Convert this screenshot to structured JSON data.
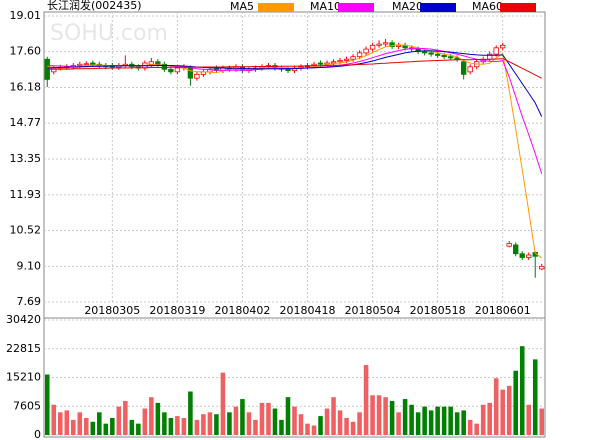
{
  "chart_data": {
    "type": "candlestick",
    "title": "长江润发(002435)",
    "watermark": "SOHU.com",
    "up_color": "#ff0000",
    "down_color": "#008000",
    "grid": true,
    "categories": [
      null,
      null,
      null,
      null,
      null,
      null,
      null,
      null,
      null,
      null,
      "20180305",
      null,
      null,
      null,
      null,
      null,
      null,
      null,
      null,
      null,
      "20180319",
      null,
      null,
      null,
      null,
      null,
      null,
      null,
      null,
      null,
      "20180402",
      null,
      null,
      null,
      null,
      null,
      null,
      null,
      null,
      null,
      "20180418",
      null,
      null,
      null,
      null,
      null,
      null,
      null,
      null,
      null,
      "20180504",
      null,
      null,
      null,
      null,
      null,
      null,
      null,
      null,
      null,
      "20180518",
      null,
      null,
      null,
      null,
      null,
      null,
      null,
      null,
      null,
      "20180601",
      null,
      null,
      null,
      null,
      null,
      null
    ],
    "open": [
      17.3,
      16.8,
      16.95,
      16.98,
      17.0,
      17.05,
      17.1,
      17.15,
      17.1,
      17.05,
      17.05,
      16.98,
      17.05,
      17.1,
      17.0,
      16.95,
      17.1,
      17.2,
      17.1,
      16.9,
      16.8,
      16.95,
      16.95,
      16.55,
      16.7,
      16.8,
      16.95,
      16.85,
      16.95,
      16.9,
      17.0,
      16.85,
      16.9,
      16.95,
      17.0,
      17.05,
      16.95,
      16.9,
      16.85,
      16.95,
      17.0,
      17.05,
      17.15,
      17.1,
      17.15,
      17.2,
      17.25,
      17.3,
      17.4,
      17.55,
      17.7,
      17.85,
      17.9,
      17.95,
      17.8,
      17.85,
      17.75,
      17.7,
      17.6,
      17.55,
      17.5,
      17.45,
      17.4,
      17.35,
      17.2,
      16.8,
      17.0,
      17.2,
      17.3,
      17.5,
      17.75,
      9.9,
      9.95,
      9.6,
      9.45,
      9.65,
      9.0
    ],
    "high": [
      17.4,
      17.05,
      17.08,
      17.1,
      17.15,
      17.2,
      17.22,
      17.25,
      17.2,
      17.15,
      17.15,
      17.15,
      17.45,
      17.2,
      17.1,
      17.25,
      17.35,
      17.3,
      17.2,
      17.0,
      17.05,
      17.1,
      17.05,
      16.8,
      16.9,
      17.0,
      17.05,
      17.05,
      17.05,
      17.1,
      17.1,
      17.0,
      17.05,
      17.1,
      17.15,
      17.15,
      17.05,
      17.0,
      17.05,
      17.1,
      17.15,
      17.2,
      17.25,
      17.25,
      17.3,
      17.35,
      17.4,
      17.5,
      17.65,
      17.8,
      17.95,
      18.05,
      18.1,
      18.05,
      17.95,
      17.95,
      17.85,
      17.8,
      17.7,
      17.65,
      17.6,
      17.55,
      17.5,
      17.45,
      17.3,
      17.1,
      17.3,
      17.4,
      17.6,
      17.85,
      17.95,
      10.1,
      10.05,
      9.7,
      9.65,
      9.7,
      9.2
    ],
    "low": [
      16.2,
      16.7,
      16.85,
      16.88,
      16.9,
      16.95,
      17.0,
      16.98,
      16.92,
      16.9,
      16.88,
      16.88,
      16.95,
      16.9,
      16.85,
      16.85,
      17.0,
      17.0,
      16.8,
      16.7,
      16.7,
      16.85,
      16.25,
      16.45,
      16.6,
      16.7,
      16.75,
      16.75,
      16.8,
      16.8,
      16.75,
      16.75,
      16.8,
      16.85,
      16.9,
      16.85,
      16.8,
      16.75,
      16.75,
      16.85,
      16.9,
      16.95,
      17.0,
      17.0,
      17.05,
      17.1,
      17.15,
      17.2,
      17.3,
      17.45,
      17.6,
      17.75,
      17.8,
      17.7,
      17.7,
      17.65,
      17.6,
      17.5,
      17.45,
      17.4,
      17.35,
      17.3,
      17.25,
      17.2,
      16.5,
      16.7,
      16.9,
      17.1,
      17.2,
      17.4,
      17.65,
      9.85,
      9.5,
      9.35,
      9.35,
      8.65,
      8.95
    ],
    "close": [
      16.5,
      16.95,
      16.98,
      17.0,
      17.05,
      17.1,
      17.12,
      17.08,
      17.02,
      17.0,
      16.98,
      17.05,
      17.1,
      17.0,
      16.95,
      17.15,
      17.2,
      17.1,
      16.9,
      16.8,
      16.95,
      17.0,
      16.55,
      16.7,
      16.8,
      16.9,
      16.85,
      16.95,
      16.9,
      17.0,
      16.85,
      16.9,
      16.95,
      17.0,
      17.05,
      16.95,
      16.9,
      16.85,
      16.95,
      17.0,
      17.05,
      17.1,
      17.1,
      17.15,
      17.2,
      17.25,
      17.3,
      17.4,
      17.55,
      17.7,
      17.85,
      17.9,
      17.95,
      17.8,
      17.85,
      17.75,
      17.7,
      17.6,
      17.55,
      17.5,
      17.45,
      17.4,
      17.35,
      17.3,
      16.7,
      17.0,
      17.2,
      17.3,
      17.5,
      17.75,
      17.85,
      10.0,
      9.6,
      9.45,
      9.55,
      9.5,
      9.1
    ],
    "ylim": [
      7.69,
      19.01
    ],
    "yticks": [
      7.69,
      {
        "value": 9.1,
        "label": "9.10"
      },
      10.52,
      11.93,
      13.35,
      14.77,
      16.18,
      {
        "value": 17.6,
        "label": "17.60"
      },
      19.01
    ],
    "series": [
      {
        "name": "MA5",
        "color": "#ff9900",
        "values": [
          17.0,
          16.98,
          16.96,
          16.9,
          16.9,
          17.02,
          17.05,
          17.07,
          17.07,
          17.06,
          17.04,
          17.03,
          17.03,
          17.03,
          17.02,
          17.05,
          17.08,
          17.08,
          17.06,
          17.03,
          16.99,
          16.95,
          16.84,
          16.8,
          16.8,
          16.79,
          16.76,
          16.84,
          16.88,
          16.92,
          16.91,
          16.91,
          16.92,
          16.94,
          16.95,
          16.95,
          16.97,
          16.95,
          16.94,
          16.94,
          16.96,
          16.99,
          17.04,
          17.08,
          17.12,
          17.16,
          17.2,
          17.26,
          17.34,
          17.44,
          17.56,
          17.68,
          17.79,
          17.84,
          17.87,
          17.85,
          17.81,
          17.74,
          17.69,
          17.62,
          17.56,
          17.5,
          17.45,
          17.4,
          17.24,
          17.15,
          17.11,
          17.1,
          17.14,
          17.35,
          17.52,
          16.08,
          14.54,
          12.93,
          11.29,
          9.62,
          9.44
        ]
      },
      {
        "name": "MA10",
        "color": "#ff00ff",
        "values": [
          17.05,
          17.04,
          17.03,
          17.02,
          17.0,
          16.99,
          17.0,
          17.01,
          17.02,
          17.03,
          17.04,
          17.05,
          17.05,
          17.05,
          17.04,
          17.04,
          17.05,
          17.06,
          17.05,
          17.04,
          17.02,
          17.0,
          16.96,
          16.92,
          16.9,
          16.88,
          16.86,
          16.86,
          16.86,
          16.86,
          16.86,
          16.86,
          16.88,
          16.9,
          16.92,
          16.93,
          16.93,
          16.93,
          16.93,
          16.94,
          16.95,
          16.96,
          16.98,
          17.0,
          17.02,
          17.06,
          17.1,
          17.15,
          17.21,
          17.28,
          17.36,
          17.44,
          17.52,
          17.58,
          17.64,
          17.69,
          17.72,
          17.73,
          17.72,
          17.7,
          17.66,
          17.61,
          17.55,
          17.5,
          17.43,
          17.36,
          17.3,
          17.25,
          17.22,
          17.21,
          17.24,
          16.6,
          15.82,
          15.04,
          14.32,
          13.57,
          12.76
        ]
      },
      {
        "name": "MA20",
        "color": "#0000cc",
        "values": [
          16.95,
          16.96,
          16.97,
          16.98,
          16.99,
          17.0,
          17.01,
          17.02,
          17.02,
          17.03,
          17.03,
          17.03,
          17.04,
          17.04,
          17.04,
          17.04,
          17.04,
          17.05,
          17.05,
          17.05,
          17.04,
          17.03,
          17.01,
          16.99,
          16.97,
          16.96,
          16.95,
          16.95,
          16.94,
          16.94,
          16.93,
          16.93,
          16.92,
          16.92,
          16.92,
          16.92,
          16.92,
          16.93,
          16.93,
          16.94,
          16.95,
          16.96,
          16.97,
          16.98,
          17.0,
          17.02,
          17.05,
          17.08,
          17.12,
          17.17,
          17.23,
          17.3,
          17.37,
          17.43,
          17.49,
          17.55,
          17.59,
          17.62,
          17.63,
          17.63,
          17.62,
          17.6,
          17.58,
          17.55,
          17.52,
          17.49,
          17.47,
          17.46,
          17.46,
          17.46,
          17.47,
          17.1,
          16.72,
          16.34,
          15.96,
          15.57,
          15.03
        ]
      },
      {
        "name": "MA60",
        "color": "#ee0000",
        "values": [
          16.9,
          16.9,
          16.91,
          16.91,
          16.92,
          16.92,
          16.93,
          16.93,
          16.94,
          16.94,
          16.95,
          16.95,
          16.95,
          16.96,
          16.96,
          16.96,
          16.97,
          16.97,
          16.97,
          16.98,
          16.98,
          16.98,
          16.98,
          16.98,
          16.99,
          16.99,
          16.99,
          16.99,
          17.0,
          17.0,
          17.0,
          17.0,
          17.01,
          17.01,
          17.01,
          17.01,
          17.02,
          17.02,
          17.02,
          17.03,
          17.03,
          17.04,
          17.04,
          17.05,
          17.06,
          17.06,
          17.07,
          17.08,
          17.09,
          17.1,
          17.11,
          17.13,
          17.14,
          17.16,
          17.17,
          17.19,
          17.2,
          17.22,
          17.23,
          17.24,
          17.25,
          17.26,
          17.27,
          17.28,
          17.28,
          17.28,
          17.29,
          17.29,
          17.3,
          17.31,
          17.32,
          17.2,
          17.07,
          16.94,
          16.81,
          16.68,
          16.55
        ]
      }
    ],
    "volume": {
      "values": [
        16000,
        8000,
        6000,
        6500,
        4000,
        6000,
        4500,
        3500,
        6000,
        3000,
        4500,
        7500,
        9000,
        4000,
        3000,
        7000,
        10000,
        8500,
        6000,
        4500,
        5000,
        4500,
        11500,
        4000,
        5500,
        6000,
        5500,
        16500,
        6000,
        7500,
        9500,
        6000,
        4000,
        8500,
        8500,
        7000,
        4000,
        10000,
        7500,
        5500,
        3000,
        2500,
        5000,
        7000,
        10000,
        6500,
        4500,
        3500,
        6000,
        18500,
        10500,
        10500,
        10000,
        9000,
        6000,
        9500,
        8000,
        6000,
        7500,
        6500,
        7500,
        7500,
        7500,
        6000,
        6500,
        4000,
        3000,
        8000,
        8500,
        15000,
        12000,
        13000,
        17000,
        23500,
        8000,
        20000,
        7000
      ],
      "ylim": [
        0,
        30420
      ],
      "yticks": [
        0,
        7605,
        15210,
        22815,
        30420
      ]
    }
  }
}
